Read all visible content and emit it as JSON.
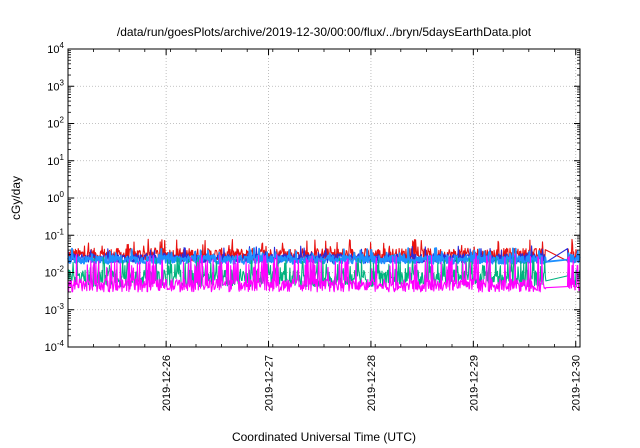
{
  "chart_data": {
    "type": "line",
    "title": "/data/run/goesPlots/archive/2019-12-30/00:00/flux/../bryn/5daysEarthData.plot",
    "xlabel": "Coordinated Universal Time (UTC)",
    "ylabel": "cGy/day",
    "y_scale": "log",
    "ylim": [
      0.0001,
      10000
    ],
    "xlim": [
      "2019-12-25 01:00",
      "2019-12-30 01:00"
    ],
    "grid": true,
    "legend": "none",
    "y_ticks": [
      {
        "value": 0.0001,
        "base": "10",
        "exp": "-4"
      },
      {
        "value": 0.001,
        "base": "10",
        "exp": "-3"
      },
      {
        "value": 0.01,
        "base": "10",
        "exp": "-2"
      },
      {
        "value": 0.1,
        "base": "10",
        "exp": "-1"
      },
      {
        "value": 1,
        "base": "10",
        "exp": "0"
      },
      {
        "value": 10,
        "base": "10",
        "exp": "1"
      },
      {
        "value": 100,
        "base": "10",
        "exp": "2"
      },
      {
        "value": 1000,
        "base": "10",
        "exp": "3"
      },
      {
        "value": 10000,
        "base": "10",
        "exp": "4"
      }
    ],
    "x_ticks": [
      {
        "value": "2019-12-26 00:00",
        "label": "2019-12-26"
      },
      {
        "value": "2019-12-27 00:00",
        "label": "2019-12-27"
      },
      {
        "value": "2019-12-28 00:00",
        "label": "2019-12-28"
      },
      {
        "value": "2019-12-29 00:00",
        "label": "2019-12-29"
      },
      {
        "value": "2019-12-30 00:00",
        "label": "2019-12-30"
      }
    ],
    "series": [
      {
        "color": "#e8120f",
        "base": 0.03,
        "spread": 0.35,
        "spike": 0.06
      },
      {
        "color": "#2a2ad8",
        "base": 0.024,
        "spread": 0.25,
        "spike": 0.04
      },
      {
        "color": "#1e90ff",
        "base": 0.022,
        "spread": 0.22,
        "spike": 0.035
      },
      {
        "color": "#00b37e",
        "base": 0.007,
        "spread": 0.45,
        "spike": 0.02
      },
      {
        "color": "#ff00ff",
        "base": 0.0045,
        "spread": 0.35,
        "spike": 0.025
      }
    ]
  }
}
